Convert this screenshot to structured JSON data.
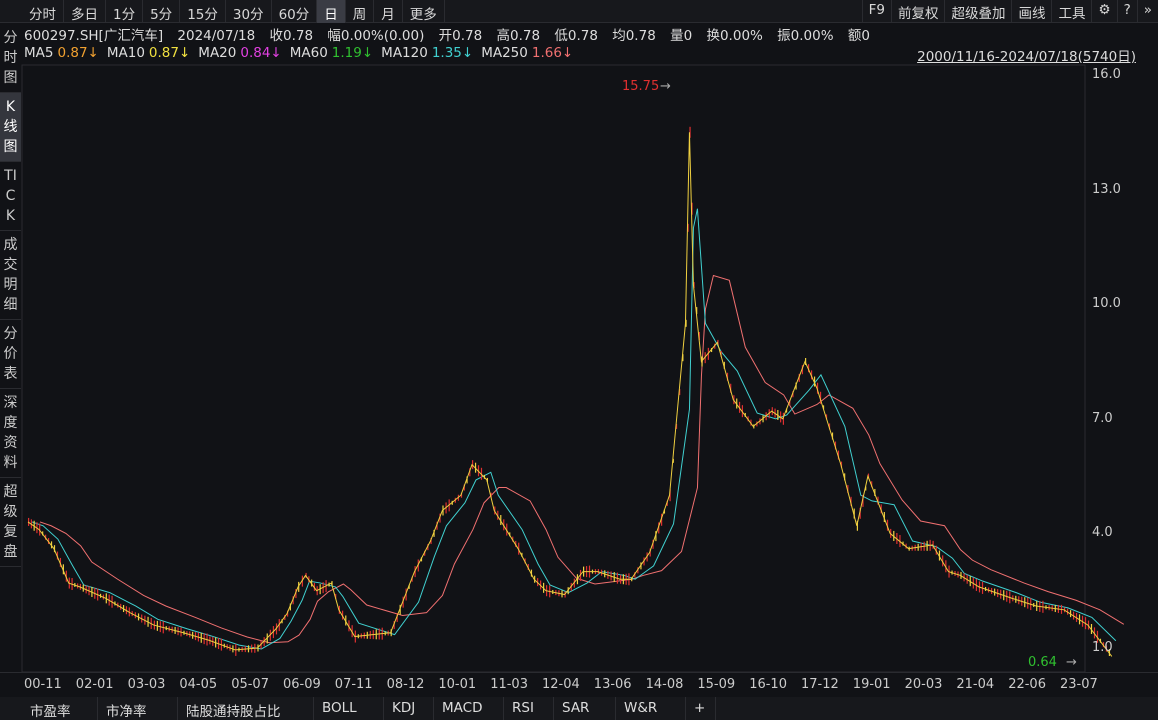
{
  "topbar": {
    "tabs": [
      "分时",
      "多日",
      "1分",
      "5分",
      "15分",
      "30分",
      "60分",
      "日",
      "周",
      "月",
      "更多"
    ],
    "active": "日",
    "tools": [
      "F9",
      "前复权",
      "超级叠加",
      "画线",
      "工具"
    ],
    "icons": [
      "gear-icon",
      "help-icon",
      "more-icon"
    ]
  },
  "info": {
    "code": "600297.SH[广汇汽车]",
    "date": "2024/07/18",
    "close": "收0.78",
    "change": "幅0.00%(0.00)",
    "open": "开0.78",
    "high": "高0.78",
    "low": "低0.78",
    "avg": "均0.78",
    "volume": "量0",
    "turnover": "换0.00%",
    "amplitude": "振0.00%",
    "amount": "额0"
  },
  "ma": [
    {
      "label": "MA5",
      "value": "0.87↓",
      "color": "#f0a030"
    },
    {
      "label": "MA10",
      "value": "0.87↓",
      "color": "#f0e040"
    },
    {
      "label": "MA20",
      "value": "0.84↓",
      "color": "#e040e0"
    },
    {
      "label": "MA60",
      "value": "1.19↓",
      "color": "#30c030"
    },
    {
      "label": "MA120",
      "value": "1.35↓",
      "color": "#40d0d0"
    },
    {
      "label": "MA250",
      "value": "1.66↓",
      "color": "#f07070"
    }
  ],
  "range": "2000/11/16-2024/07/18(5740日)",
  "side": [
    "分时图",
    "K线图",
    "TICK",
    "成交明细",
    "分价表",
    "深度资料",
    "超级复盘"
  ],
  "side_active": "K线图",
  "bottom": [
    "市盈率",
    "市净率",
    "陆股通持股占比",
    "BOLL",
    "KDJ",
    "MACD",
    "RSI",
    "SAR",
    "W&R",
    "+"
  ],
  "chart_data": {
    "type": "line",
    "title": "",
    "yticks": [
      "16.0",
      "13.0",
      "10.0",
      "7.0",
      "4.0",
      "1.0"
    ],
    "ylim": [
      1.0,
      16.0
    ],
    "xticks": [
      "00-11",
      "02-01",
      "03-03",
      "04-05",
      "05-07",
      "06-09",
      "07-11",
      "08-12",
      "10-01",
      "11-03",
      "12-04",
      "13-06",
      "14-08",
      "15-09",
      "16-10",
      "17-12",
      "19-01",
      "20-03",
      "21-04",
      "22-06",
      "23-07"
    ],
    "max_label": "15.75",
    "min_label": "0.64",
    "series": [
      {
        "x": [
          "00-11",
          "01-02",
          "01-06",
          "01-10",
          "02-01",
          "02-08",
          "03-03",
          "03-09",
          "04-05",
          "04-12",
          "05-07",
          "06-01",
          "06-06",
          "06-09",
          "06-12",
          "07-02",
          "07-05",
          "07-09",
          "07-11",
          "08-03",
          "08-12",
          "09-06",
          "09-10",
          "10-01",
          "10-06",
          "10-09",
          "11-01",
          "11-03",
          "11-09",
          "12-01",
          "12-04",
          "12-09",
          "13-02",
          "13-06",
          "13-12",
          "14-03",
          "14-08",
          "15-01",
          "15-05",
          "15-06",
          "15-07",
          "15-09",
          "16-01",
          "16-05",
          "16-10",
          "17-03",
          "17-06",
          "17-12",
          "18-03",
          "18-09",
          "19-01",
          "19-04",
          "19-10",
          "20-03",
          "20-09",
          "21-01",
          "21-04",
          "21-09",
          "22-06",
          "22-12",
          "23-07",
          "24-01",
          "24-07"
        ],
        "y": [
          4.3,
          4.1,
          3.6,
          2.7,
          2.6,
          2.3,
          1.9,
          1.6,
          1.4,
          1.2,
          0.95,
          1.0,
          1.5,
          1.9,
          2.6,
          2.9,
          2.5,
          2.7,
          2.0,
          1.3,
          1.4,
          3.0,
          3.8,
          4.6,
          5.0,
          5.8,
          5.4,
          4.6,
          3.6,
          2.8,
          2.5,
          2.4,
          3.0,
          3.0,
          2.8,
          2.8,
          3.5,
          5.0,
          9.5,
          14.5,
          10.5,
          8.5,
          9.0,
          7.5,
          6.8,
          7.2,
          7.0,
          8.5,
          7.8,
          5.8,
          4.2,
          5.5,
          4.0,
          3.6,
          3.7,
          3.0,
          2.9,
          2.6,
          2.3,
          2.1,
          2.0,
          1.6,
          0.78
        ]
      }
    ]
  }
}
